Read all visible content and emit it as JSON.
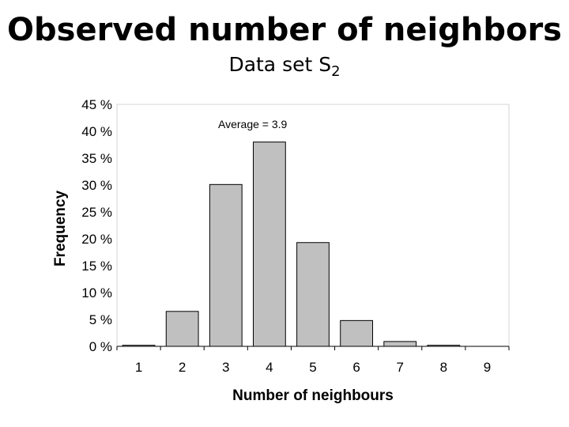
{
  "slide": {
    "title": "Observed number of neighbors",
    "subtitle_main": "Data set S",
    "subtitle_sub": "2"
  },
  "chart_data": {
    "type": "bar",
    "categories": [
      "1",
      "2",
      "3",
      "4",
      "5",
      "6",
      "7",
      "8",
      "9"
    ],
    "values": [
      0.2,
      6.5,
      30.1,
      38.0,
      19.3,
      4.8,
      0.9,
      0.2,
      0.0
    ],
    "xlabel": "Number of neighbours",
    "ylabel": "Frequency",
    "ylim": [
      0,
      45
    ],
    "yticks": [
      0,
      5,
      10,
      15,
      20,
      25,
      30,
      35,
      40,
      45
    ],
    "ytick_labels": [
      "0 %",
      "5 %",
      "10 %",
      "15 %",
      "20 %",
      "25 %",
      "30 %",
      "35 %",
      "40 %",
      "45 %"
    ],
    "annotation": "Average = 3.9",
    "grid": false,
    "bar_color": "#c0c0c0",
    "bar_edge_color": "#000000"
  }
}
